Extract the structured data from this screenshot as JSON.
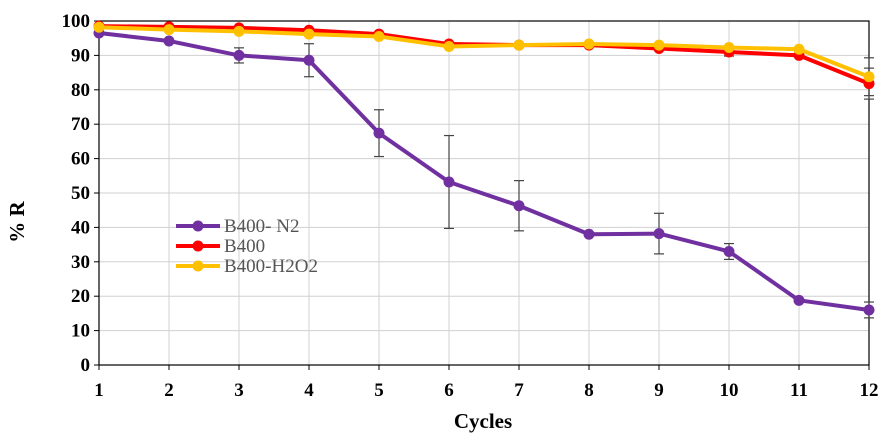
{
  "chart_data": {
    "type": "line",
    "xlabel": "Cycles",
    "ylabel": "% R",
    "ylim": [
      0,
      100
    ],
    "y_ticks": [
      0,
      10,
      20,
      30,
      40,
      50,
      60,
      70,
      80,
      90,
      100
    ],
    "x": [
      1,
      2,
      3,
      4,
      5,
      6,
      7,
      8,
      9,
      10,
      11,
      12
    ],
    "grid": true,
    "legend_position": "center-left",
    "series": [
      {
        "name": "B400- N2",
        "color": "#7030a0",
        "values": [
          96.5,
          94.2,
          90.0,
          88.6,
          67.4,
          53.2,
          46.3,
          38.0,
          38.2,
          33.0,
          18.8,
          16.0
        ],
        "error": [
          0,
          0,
          2.2,
          4.8,
          6.8,
          13.5,
          7.3,
          0,
          5.9,
          2.3,
          0,
          2.3
        ]
      },
      {
        "name": "B400",
        "color": "#ff0000",
        "values": [
          98.5,
          98.3,
          98.0,
          97.3,
          96.2,
          93.3,
          93.0,
          93.0,
          92.0,
          91.0,
          90.0,
          81.8
        ],
        "error": [
          0,
          0,
          0,
          0,
          0,
          0,
          0,
          0,
          0,
          1.2,
          0,
          4.5
        ]
      },
      {
        "name": "B400-H2O2",
        "color": "#ffc000",
        "values": [
          98.2,
          97.5,
          97.0,
          96.2,
          95.5,
          92.6,
          93.0,
          93.3,
          93.0,
          92.3,
          91.8,
          83.8
        ],
        "error": [
          0,
          0,
          0,
          0,
          0,
          0,
          0,
          0,
          0,
          0,
          0,
          5.5
        ]
      }
    ]
  }
}
